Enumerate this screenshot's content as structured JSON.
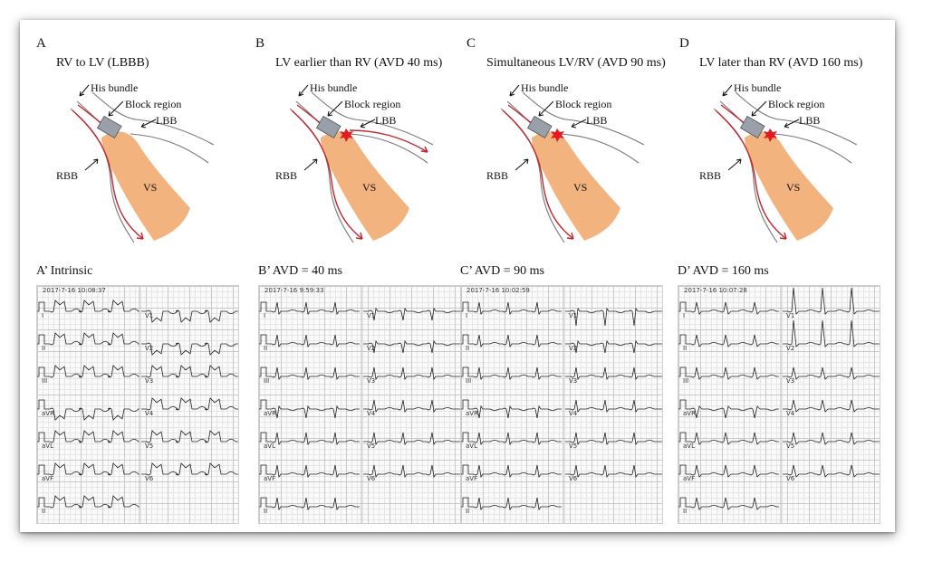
{
  "panels": [
    {
      "letter": "A",
      "title": "RV to LV (LBBB)",
      "labels": {
        "his": "His bundle",
        "block": "Block region",
        "lbb": "LBB",
        "rbb": "RBB",
        "vs": "VS"
      },
      "star": false,
      "lbbArrow": false
    },
    {
      "letter": "B",
      "title": "LV earlier than RV (AVD 40 ms)",
      "labels": {
        "his": "His bundle",
        "block": "Block region",
        "lbb": "LBB",
        "rbb": "RBB",
        "vs": "VS"
      },
      "star": true,
      "lbbArrow": true
    },
    {
      "letter": "C",
      "title": "Simultaneous LV/RV (AVD 90 ms)",
      "labels": {
        "his": "His bundle",
        "block": "Block region",
        "lbb": "LBB",
        "rbb": "RBB",
        "vs": "VS"
      },
      "star": true,
      "lbbArrow": false
    },
    {
      "letter": "D",
      "title": "LV later than RV (AVD 160 ms)",
      "labels": {
        "his": "His bundle",
        "block": "Block region",
        "lbb": "LBB",
        "rbb": "RBB",
        "vs": "VS"
      },
      "star": true,
      "lbbArrow": false
    }
  ],
  "ecgs": [
    {
      "label": "A’",
      "title": "Intrinsic",
      "timestamp": "2017-7-16 10:08:37",
      "pattern": "lbbb"
    },
    {
      "label": "B’",
      "title": "AVD = 40 ms",
      "timestamp": "2017-7-16 9:59:33",
      "pattern": "narrow"
    },
    {
      "label": "C’",
      "title": "AVD = 90 ms",
      "timestamp": "2017-7-16 10:02:59",
      "pattern": "narrow2"
    },
    {
      "label": "D’",
      "title": "AVD = 160 ms",
      "timestamp": "2017-7-16 10:07:28",
      "pattern": "paced"
    }
  ],
  "leads_left": [
    "I",
    "II",
    "III",
    "aVR",
    "aVL",
    "aVF",
    "II"
  ],
  "leads_right": [
    "V1",
    "V2",
    "V3",
    "V4",
    "V5",
    "V6"
  ],
  "colors": {
    "conduction": "#c0282e",
    "septum": "#f2b37f",
    "block": "#9aa0aa",
    "star": "#e01b22"
  }
}
